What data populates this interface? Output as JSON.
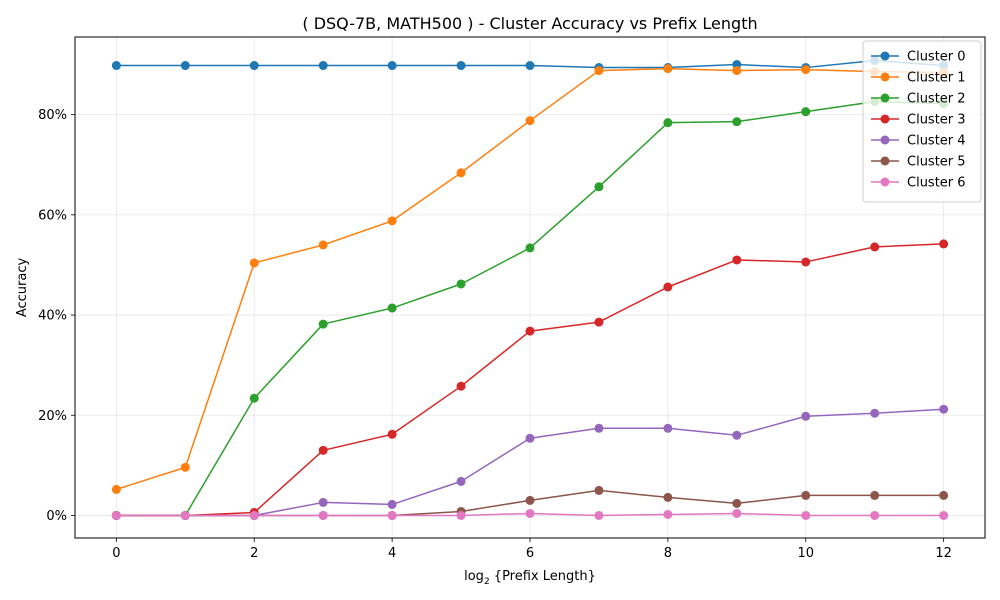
{
  "chart_data": {
    "type": "line",
    "title": "( DSQ-7B, MATH500 ) - Cluster Accuracy vs Prefix Length",
    "xlabel_prefix": "log",
    "xlabel_sub": "2",
    "xlabel_suffix": " {Prefix Length}",
    "ylabel": "Accuracy",
    "x": [
      0,
      1,
      2,
      3,
      4,
      5,
      6,
      7,
      8,
      9,
      10,
      11,
      12
    ],
    "xlim": [
      -0.6,
      12.6
    ],
    "ylim": [
      -0.045,
      0.955
    ],
    "xticks": [
      0,
      2,
      4,
      6,
      8,
      10,
      12
    ],
    "xtick_labels": [
      "0",
      "2",
      "4",
      "6",
      "8",
      "10",
      "12"
    ],
    "yticks": [
      0,
      0.2,
      0.4,
      0.6,
      0.8
    ],
    "ytick_labels": [
      "0%",
      "20%",
      "40%",
      "60%",
      "80%"
    ],
    "grid": true,
    "legend_position": "top-right",
    "series": [
      {
        "name": "Cluster 0",
        "color": "#1f77b4",
        "values": [
          0.898,
          0.898,
          0.898,
          0.898,
          0.898,
          0.898,
          0.898,
          0.894,
          0.894,
          0.9,
          0.894,
          0.908,
          0.898
        ]
      },
      {
        "name": "Cluster 1",
        "color": "#ff7f0e",
        "values": [
          0.052,
          0.096,
          0.504,
          0.54,
          0.588,
          0.684,
          0.788,
          0.888,
          0.892,
          0.888,
          0.89,
          0.886,
          0.884
        ]
      },
      {
        "name": "Cluster 2",
        "color": "#2ca02c",
        "values": [
          0.0,
          0.0,
          0.234,
          0.382,
          0.414,
          0.462,
          0.534,
          0.656,
          0.784,
          0.786,
          0.806,
          0.826,
          0.822
        ]
      },
      {
        "name": "Cluster 3",
        "color": "#d62728",
        "values": [
          0.0,
          0.0,
          0.006,
          0.13,
          0.162,
          0.258,
          0.368,
          0.386,
          0.456,
          0.51,
          0.506,
          0.536,
          0.542
        ]
      },
      {
        "name": "Cluster 4",
        "color": "#9467bd",
        "values": [
          0.0,
          0.0,
          0.0,
          0.026,
          0.022,
          0.068,
          0.154,
          0.174,
          0.174,
          0.16,
          0.198,
          0.204,
          0.212
        ]
      },
      {
        "name": "Cluster 5",
        "color": "#8c564b",
        "values": [
          0.0,
          0.0,
          0.0,
          0.0,
          0.0,
          0.008,
          0.03,
          0.05,
          0.036,
          0.024,
          0.04,
          0.04,
          0.04
        ]
      },
      {
        "name": "Cluster 6",
        "color": "#e377c2",
        "values": [
          0.0,
          0.0,
          0.0,
          0.0,
          0.0,
          0.0,
          0.004,
          0.0,
          0.002,
          0.004,
          0.0,
          0.0,
          0.0
        ]
      }
    ]
  }
}
